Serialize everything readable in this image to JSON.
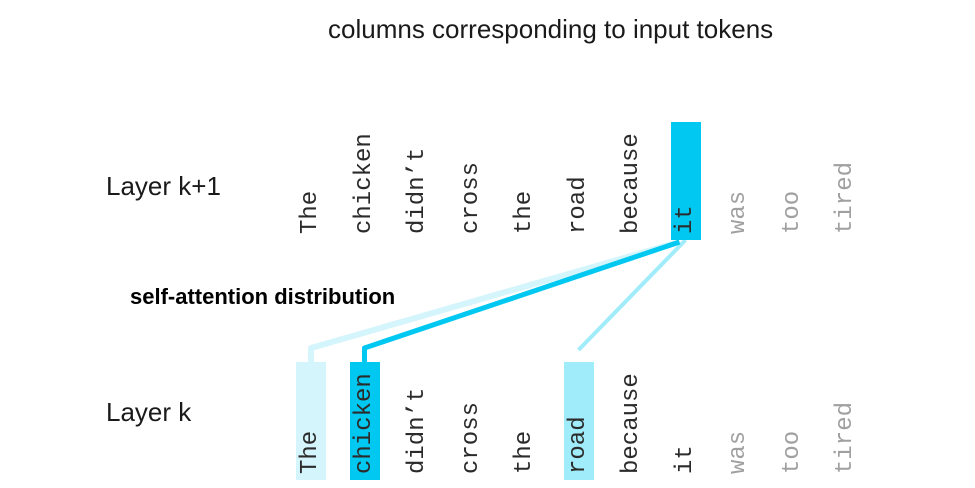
{
  "title": "columns corresponding to input tokens",
  "layers": {
    "upper_label": "Layer k+1",
    "lower_label": "Layer k"
  },
  "attention_label": "self-attention distribution",
  "colors": {
    "strong": "#00c8f0",
    "medium": "#a0ecfa",
    "weak": "#d4f5fc",
    "active_text": "#2b2b2b",
    "faded_text": "#a0a0a0"
  },
  "tokens": [
    "The",
    "chicken",
    "didn’t",
    "cross",
    "the",
    "road",
    "because",
    "it",
    "was",
    "too",
    "tired"
  ],
  "upper_row": {
    "faded_from": 8,
    "highlight": {
      "index": 7,
      "level": "strong"
    }
  },
  "lower_row": {
    "highlights": [
      {
        "index": 0,
        "level": "weak"
      },
      {
        "index": 1,
        "level": "strong"
      },
      {
        "index": 5,
        "level": "medium"
      }
    ]
  }
}
